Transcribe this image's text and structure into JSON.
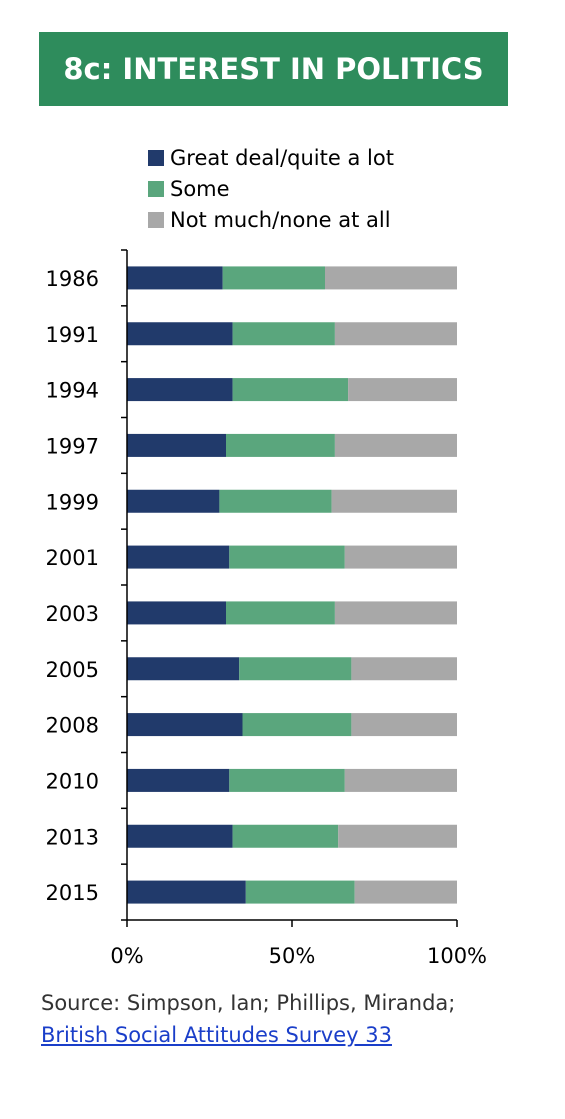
{
  "header": {
    "title": "8c: INTEREST IN POLITICS"
  },
  "colors": {
    "header_bg": "#2e8c5c",
    "great_deal": "#213a6b",
    "some": "#5aa67d",
    "not_much": "#a8a8a8"
  },
  "chart_data": {
    "type": "bar",
    "orientation": "horizontal",
    "stacked": "percent",
    "categories": [
      "1986",
      "1991",
      "1994",
      "1997",
      "1999",
      "2001",
      "2003",
      "2005",
      "2008",
      "2010",
      "2013",
      "2015"
    ],
    "series": [
      {
        "name": "Great deal/quite a lot",
        "values": [
          29,
          32,
          32,
          30,
          28,
          31,
          30,
          34,
          35,
          31,
          32,
          36
        ]
      },
      {
        "name": "Some",
        "values": [
          31,
          31,
          35,
          33,
          34,
          35,
          33,
          34,
          33,
          35,
          32,
          33
        ]
      },
      {
        "name": "Not much/none at all",
        "values": [
          40,
          37,
          33,
          37,
          38,
          34,
          37,
          32,
          32,
          34,
          36,
          31
        ]
      }
    ],
    "xticks": [
      "0%",
      "50%",
      "100%"
    ],
    "xlim": [
      0,
      100
    ],
    "legend_position": "top",
    "grid": false
  },
  "source": {
    "prefix": "Source: Simpson, Ian; Phillips, Miranda; ",
    "link_text": "British Social Attitudes Survey 33"
  }
}
